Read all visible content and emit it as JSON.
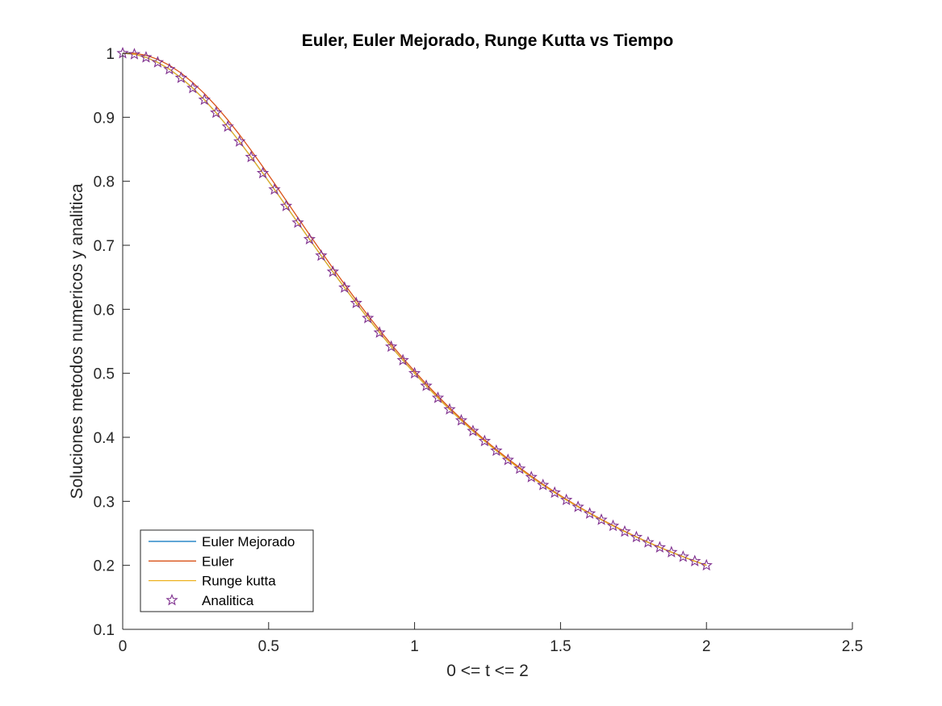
{
  "chart_data": {
    "type": "line",
    "title": "Euler, Euler Mejorado, Runge Kutta vs Tiempo",
    "xlabel": "0 <= t <= 2",
    "ylabel": "Soluciones metodos numericos y analitica",
    "xlim": [
      0,
      2.5
    ],
    "ylim": [
      0.1,
      1
    ],
    "xticks": [
      "0",
      "0.5",
      "1",
      "1.5",
      "2",
      "2.5"
    ],
    "yticks": [
      "0.1",
      "0.2",
      "0.3",
      "0.4",
      "0.5",
      "0.6",
      "0.7",
      "0.8",
      "0.9",
      "1"
    ],
    "grid": false,
    "legend_position": "bottom-left",
    "x": [
      0,
      0.04,
      0.08,
      0.12,
      0.16,
      0.2,
      0.24,
      0.28,
      0.32,
      0.36,
      0.4,
      0.44,
      0.48,
      0.52,
      0.56,
      0.6,
      0.64,
      0.68,
      0.72,
      0.76,
      0.8,
      0.84,
      0.88,
      0.92,
      0.96,
      1.0,
      1.04,
      1.08,
      1.12,
      1.16,
      1.2,
      1.24,
      1.28,
      1.32,
      1.36,
      1.4,
      1.44,
      1.48,
      1.52,
      1.56,
      1.6,
      1.64,
      1.68,
      1.72,
      1.76,
      1.8,
      1.84,
      1.88,
      1.92,
      1.96,
      2.0
    ],
    "series": [
      {
        "name": "Euler Mejorado",
        "color": "#0072BD",
        "style": "line",
        "values": [
          1.0,
          0.9984,
          0.9936,
          0.9858,
          0.975,
          0.9615,
          0.9456,
          0.9273,
          0.9071,
          0.8853,
          0.8621,
          0.8378,
          0.8127,
          0.7871,
          0.7613,
          0.7353,
          0.7095,
          0.6838,
          0.6586,
          0.6339,
          0.6098,
          0.5863,
          0.5636,
          0.5416,
          0.5204,
          0.5,
          0.4804,
          0.4616,
          0.4436,
          0.4264,
          0.4098,
          0.3941,
          0.379,
          0.3646,
          0.3509,
          0.3378,
          0.3254,
          0.3135,
          0.3021,
          0.2913,
          0.2809,
          0.2711,
          0.2616,
          0.2527,
          0.2441,
          0.2358,
          0.228,
          0.2205,
          0.2134,
          0.2065,
          0.2
        ]
      },
      {
        "name": "Euler",
        "color": "#D95319",
        "style": "line",
        "values": [
          1.0,
          1.0,
          0.9968,
          0.9905,
          0.9812,
          0.9691,
          0.9542,
          0.9369,
          0.9174,
          0.8959,
          0.8728,
          0.8483,
          0.8228,
          0.7966,
          0.77,
          0.7432,
          0.7166,
          0.6902,
          0.6643,
          0.6391,
          0.6145,
          0.5906,
          0.5675,
          0.5452,
          0.5237,
          0.5031,
          0.4833,
          0.4643,
          0.4461,
          0.4287,
          0.412,
          0.3961,
          0.3809,
          0.3664,
          0.3525,
          0.3393,
          0.3267,
          0.3147,
          0.3032,
          0.2922,
          0.2818,
          0.2718,
          0.2623,
          0.2532,
          0.2445,
          0.2362,
          0.2283,
          0.2207,
          0.2135,
          0.2065,
          0.1999
        ]
      },
      {
        "name": "Runge kutta",
        "color": "#EDB120",
        "style": "line",
        "values": [
          1.0,
          0.9984,
          0.9936,
          0.9858,
          0.975,
          0.9615,
          0.9456,
          0.9273,
          0.9071,
          0.8853,
          0.8621,
          0.8378,
          0.8127,
          0.7871,
          0.7613,
          0.7353,
          0.7095,
          0.6838,
          0.6586,
          0.6339,
          0.6098,
          0.5863,
          0.5636,
          0.5416,
          0.5204,
          0.5,
          0.4804,
          0.4616,
          0.4436,
          0.4264,
          0.4098,
          0.3941,
          0.379,
          0.3646,
          0.3509,
          0.3378,
          0.3254,
          0.3135,
          0.3021,
          0.2913,
          0.2809,
          0.2711,
          0.2616,
          0.2527,
          0.2441,
          0.2358,
          0.228,
          0.2205,
          0.2134,
          0.2065,
          0.2
        ]
      },
      {
        "name": "Analitica",
        "color": "#7E2F8E",
        "style": "marker-star",
        "values": [
          1.0,
          0.9984,
          0.9936,
          0.9858,
          0.975,
          0.9615,
          0.9456,
          0.9273,
          0.9071,
          0.8853,
          0.8621,
          0.8378,
          0.8127,
          0.7871,
          0.7613,
          0.7353,
          0.7095,
          0.6838,
          0.6586,
          0.6339,
          0.6098,
          0.5863,
          0.5636,
          0.5416,
          0.5204,
          0.5,
          0.4804,
          0.4616,
          0.4436,
          0.4264,
          0.4098,
          0.3941,
          0.379,
          0.3646,
          0.3509,
          0.3378,
          0.3254,
          0.3135,
          0.3021,
          0.2913,
          0.2809,
          0.2711,
          0.2616,
          0.2527,
          0.2441,
          0.2358,
          0.228,
          0.2205,
          0.2134,
          0.2065,
          0.2
        ]
      }
    ]
  }
}
